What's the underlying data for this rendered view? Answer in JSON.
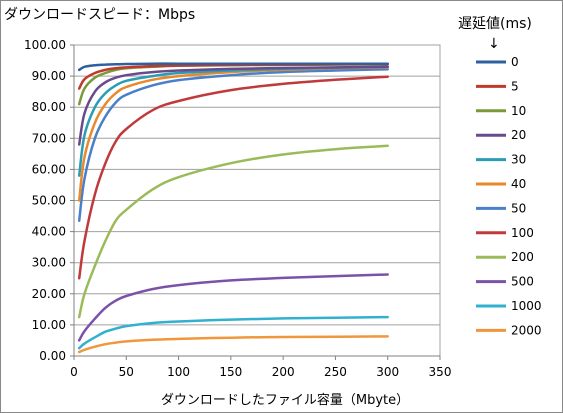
{
  "chart_data": {
    "type": "line",
    "title": "ダウンロードスピード：Mbps",
    "xlabel": "ダウンロードしたファイル容量（Mbyte）",
    "ylabel": "",
    "legend_title": "遅延値(ms)",
    "legend_arrow": "↓",
    "legend_position": "right",
    "grid": true,
    "xlim": [
      0,
      350
    ],
    "ylim": [
      0,
      100
    ],
    "x_ticks": [
      "0",
      "50",
      "100",
      "150",
      "200",
      "250",
      "300",
      "350"
    ],
    "y_ticks": [
      "0.00",
      "10.00",
      "20.00",
      "30.00",
      "40.00",
      "50.00",
      "60.00",
      "70.00",
      "80.00",
      "90.00",
      "100.00"
    ],
    "x": [
      5,
      10,
      20,
      30,
      40,
      50,
      75,
      100,
      150,
      200,
      250,
      300
    ],
    "series": [
      {
        "name": "0",
        "color": "#2e5f9e",
        "values": [
          92.0,
          93.0,
          93.5,
          93.7,
          93.8,
          93.9,
          94.0,
          94.0,
          94.0,
          94.0,
          94.0,
          94.0
        ]
      },
      {
        "name": "5",
        "color": "#c0392b",
        "values": [
          86.0,
          89.0,
          91.0,
          92.0,
          92.5,
          92.8,
          93.2,
          93.4,
          93.6,
          93.7,
          93.8,
          93.9
        ]
      },
      {
        "name": "10",
        "color": "#7a9a3a",
        "values": [
          81.0,
          86.0,
          89.5,
          91.0,
          92.0,
          92.5,
          93.0,
          93.3,
          93.5,
          93.6,
          93.7,
          93.8
        ]
      },
      {
        "name": "20",
        "color": "#6a4a8c",
        "values": [
          68.0,
          78.0,
          85.0,
          88.0,
          89.5,
          90.3,
          91.3,
          91.8,
          92.3,
          92.6,
          92.8,
          93.0
        ]
      },
      {
        "name": "30",
        "color": "#2a9db5",
        "values": [
          58.0,
          71.0,
          80.0,
          84.5,
          87.0,
          88.5,
          90.0,
          91.0,
          91.8,
          92.3,
          92.7,
          93.0
        ]
      },
      {
        "name": "40",
        "color": "#e8892d",
        "values": [
          50.0,
          64.0,
          75.0,
          81.0,
          84.5,
          86.5,
          88.8,
          90.0,
          91.3,
          92.0,
          92.5,
          92.8
        ]
      },
      {
        "name": "50",
        "color": "#4a7fc9",
        "values": [
          43.5,
          57.0,
          70.0,
          77.0,
          81.5,
          84.0,
          87.0,
          88.7,
          90.3,
          91.3,
          91.8,
          92.2
        ]
      },
      {
        "name": "100",
        "color": "#c0393b",
        "values": [
          25.0,
          37.0,
          52.0,
          62.0,
          69.0,
          73.0,
          79.0,
          82.0,
          85.5,
          87.5,
          88.8,
          89.8
        ]
      },
      {
        "name": "200",
        "color": "#9bbb59",
        "values": [
          12.5,
          20.0,
          29.0,
          37.0,
          43.5,
          47.0,
          53.5,
          57.5,
          62.0,
          64.8,
          66.5,
          67.6
        ]
      },
      {
        "name": "500",
        "color": "#7b52a8",
        "values": [
          5.0,
          8.0,
          12.0,
          15.5,
          17.8,
          19.3,
          21.5,
          22.8,
          24.3,
          25.1,
          25.7,
          26.2
        ]
      },
      {
        "name": "1000",
        "color": "#31b0d0",
        "values": [
          2.5,
          4.0,
          6.0,
          7.8,
          8.8,
          9.6,
          10.6,
          11.1,
          11.7,
          12.1,
          12.3,
          12.5
        ]
      },
      {
        "name": "2000",
        "color": "#f0963c",
        "values": [
          1.3,
          2.0,
          3.0,
          3.8,
          4.3,
          4.7,
          5.2,
          5.5,
          5.9,
          6.1,
          6.2,
          6.3
        ]
      }
    ]
  }
}
